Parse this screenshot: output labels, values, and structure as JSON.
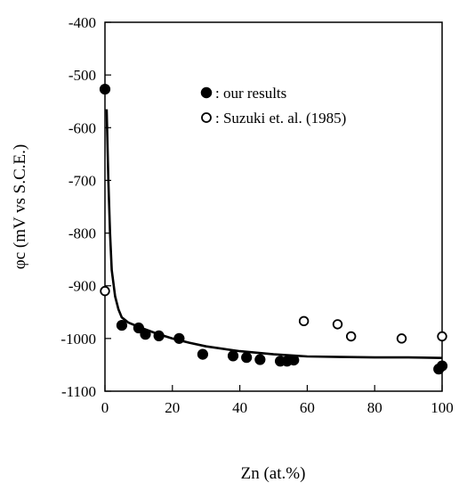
{
  "chart_data": {
    "type": "scatter",
    "xlabel": "Zn (at.%)",
    "ylabel": "φc (mV vs S.C.E.)",
    "xlim": [
      0,
      100
    ],
    "ylim": [
      -1100,
      -400
    ],
    "x_ticks": [
      0,
      20,
      40,
      60,
      80,
      100
    ],
    "y_ticks": [
      -400,
      -500,
      -600,
      -700,
      -800,
      -900,
      -1000,
      -1100
    ],
    "x_tick_labels": [
      "0",
      "20",
      "40",
      "60",
      "80",
      "100"
    ],
    "y_tick_labels": [
      "-400",
      "-500",
      "-600",
      "-700",
      "-800",
      "-900",
      "-1000",
      "-1100"
    ],
    "grid": false,
    "legend_position": "top-right",
    "series": [
      {
        "name": ": our results",
        "marker": "filled-circle",
        "points": [
          [
            0,
            -527
          ],
          [
            5,
            -975
          ],
          [
            10,
            -980
          ],
          [
            12,
            -992
          ],
          [
            16,
            -995
          ],
          [
            22,
            -1000
          ],
          [
            29,
            -1030
          ],
          [
            38,
            -1033
          ],
          [
            42,
            -1036
          ],
          [
            46,
            -1040
          ],
          [
            52,
            -1043
          ],
          [
            54,
            -1043
          ],
          [
            56,
            -1041
          ],
          [
            99,
            -1058
          ],
          [
            100,
            -1052
          ]
        ]
      },
      {
        "name": ": Suzuki et. al. (1985)",
        "marker": "open-circle",
        "points": [
          [
            0,
            -910
          ],
          [
            59,
            -967
          ],
          [
            69,
            -973
          ],
          [
            73,
            -996
          ],
          [
            88,
            -1000
          ],
          [
            100,
            -996
          ]
        ]
      },
      {
        "type": "line",
        "points": [
          [
            0.5,
            -565
          ],
          [
            1,
            -700
          ],
          [
            1.5,
            -800
          ],
          [
            2,
            -870
          ],
          [
            3,
            -920
          ],
          [
            4,
            -945
          ],
          [
            5,
            -960
          ],
          [
            7,
            -970
          ],
          [
            10,
            -978
          ],
          [
            15,
            -990
          ],
          [
            20,
            -1000
          ],
          [
            25,
            -1008
          ],
          [
            30,
            -1015
          ],
          [
            40,
            -1024
          ],
          [
            50,
            -1030
          ],
          [
            60,
            -1034
          ],
          [
            70,
            -1035
          ],
          [
            80,
            -1036
          ],
          [
            90,
            -1036
          ],
          [
            100,
            -1037
          ]
        ]
      }
    ]
  }
}
